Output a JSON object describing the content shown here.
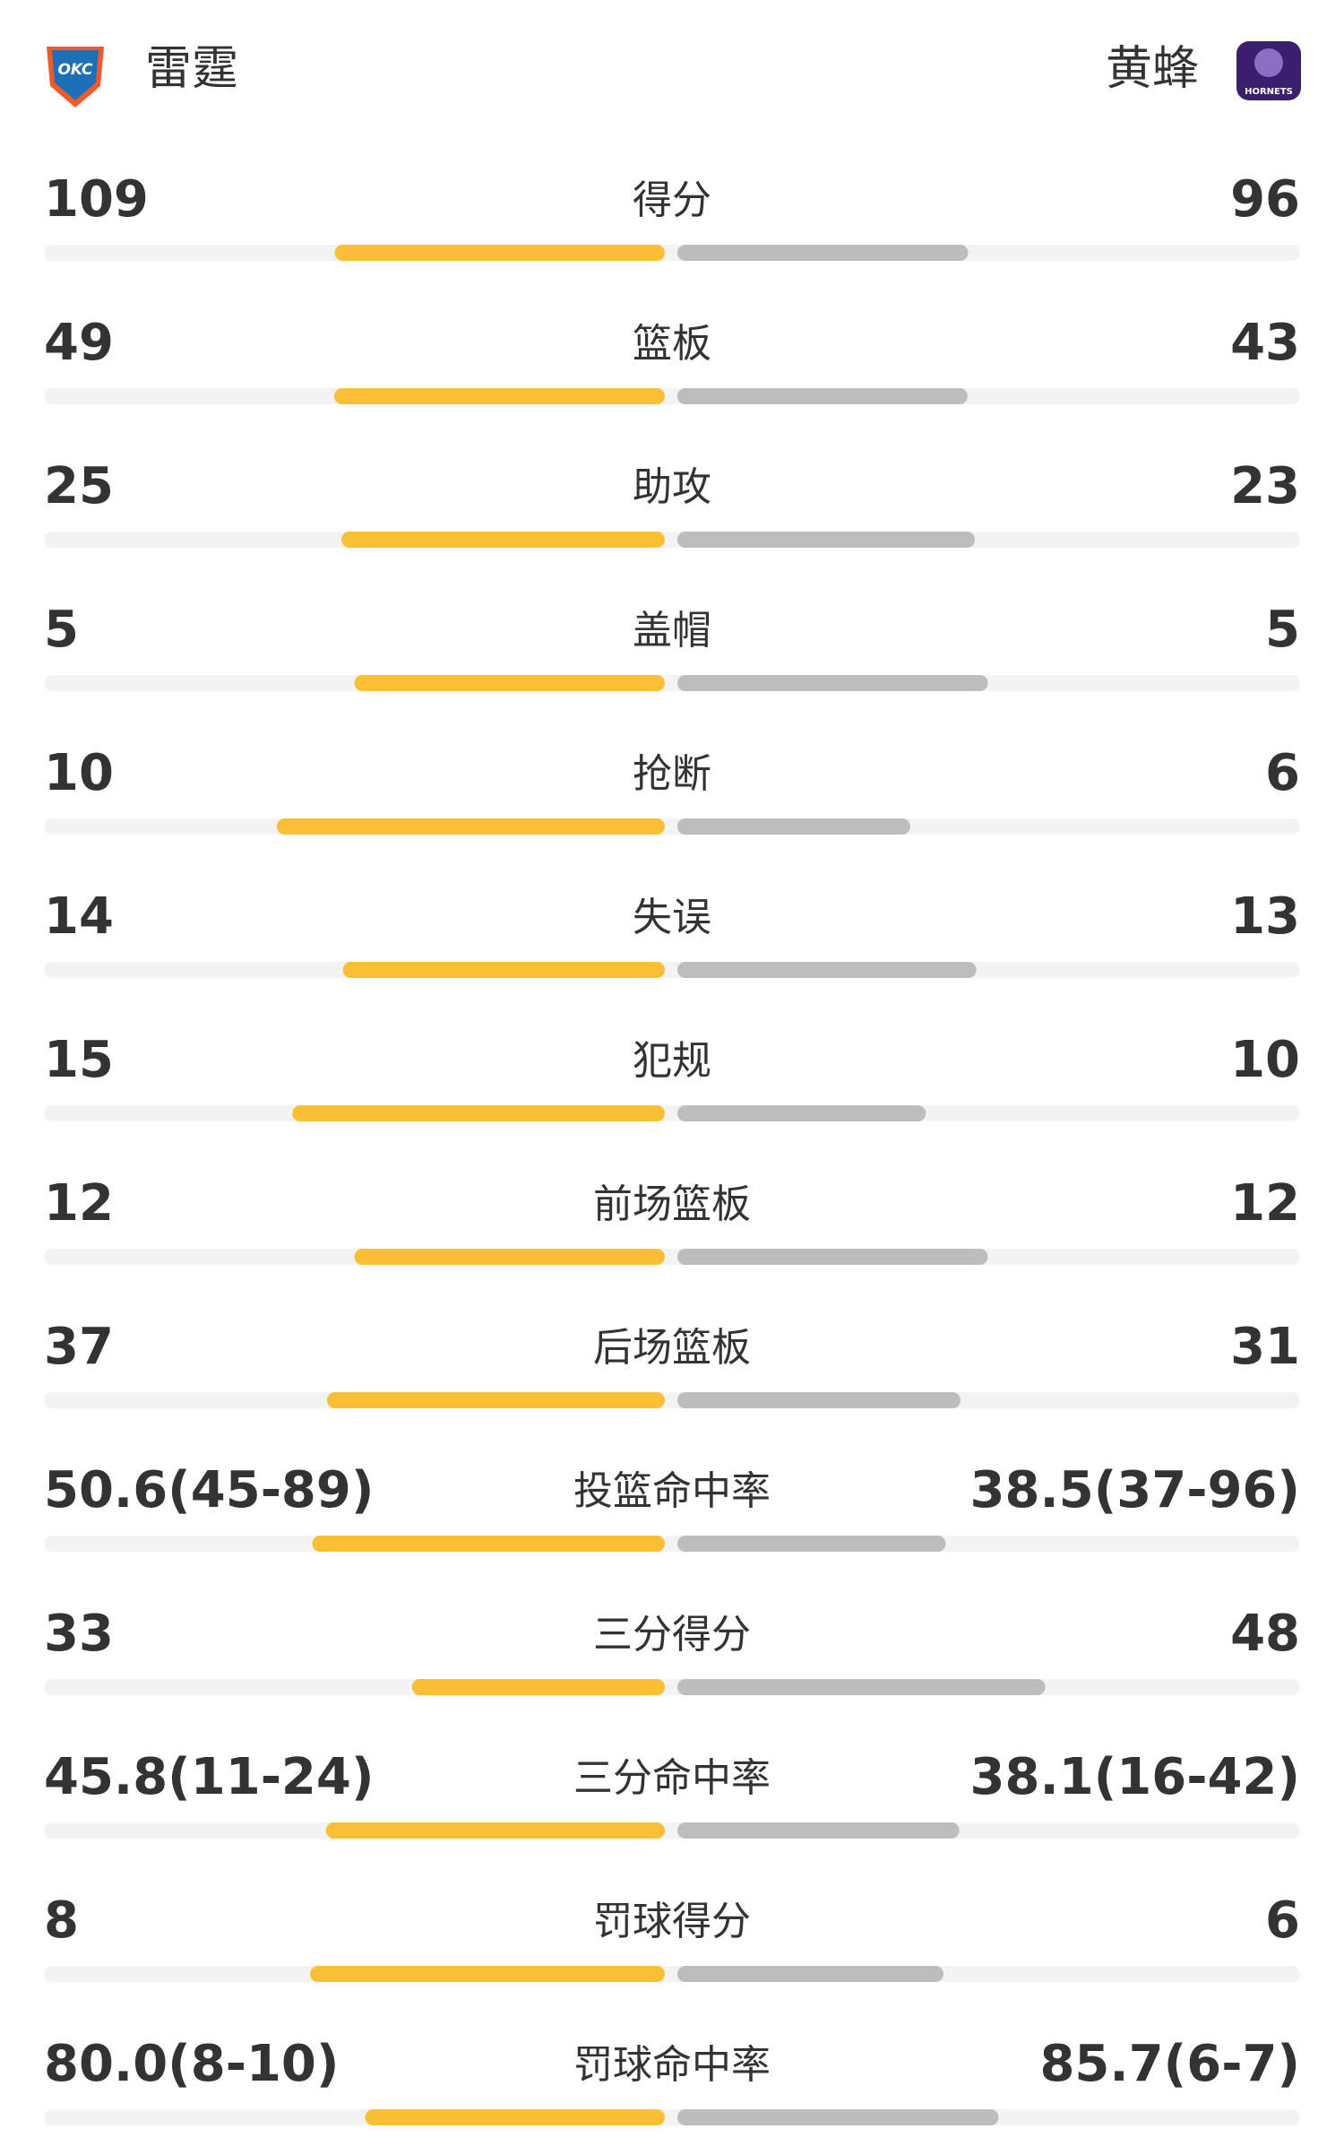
{
  "header": {
    "home": {
      "name": "雷霆",
      "logo_text": "OKC"
    },
    "away": {
      "name": "黄蜂",
      "logo_text": "HORNETS"
    }
  },
  "stats": [
    {
      "stat": "得分",
      "home": 109,
      "away": 96
    },
    {
      "stat": "篮板",
      "home": 49,
      "away": 43
    },
    {
      "stat": "助攻",
      "home": 25,
      "away": 23
    },
    {
      "stat": "盖帽",
      "home": 5,
      "away": 5
    },
    {
      "stat": "抢断",
      "home": 10,
      "away": 6
    },
    {
      "stat": "失误",
      "home": 14,
      "away": 13
    },
    {
      "stat": "犯规",
      "home": 15,
      "away": 10
    },
    {
      "stat": "前场篮板",
      "home": 12,
      "away": 12
    },
    {
      "stat": "后场篮板",
      "home": 37,
      "away": 31
    },
    {
      "stat": "投篮命中率",
      "home": {
        "value": 50.6,
        "label": "50.6(45-89)"
      },
      "away": {
        "value": 38.5,
        "label": "38.5(37-96)"
      }
    },
    {
      "stat": "三分得分",
      "home": 33,
      "away": 48
    },
    {
      "stat": "三分命中率",
      "home": {
        "value": 45.8,
        "label": "45.8(11-24)"
      },
      "away": {
        "value": 38.1,
        "label": "38.1(16-42)"
      }
    },
    {
      "stat": "罚球得分",
      "home": 8,
      "away": 6
    },
    {
      "stat": "罚球命中率",
      "home": {
        "value": 80.0,
        "label": "80.0(8-10)"
      },
      "away": {
        "value": 85.7,
        "label": "85.7(6-7)"
      }
    }
  ]
}
